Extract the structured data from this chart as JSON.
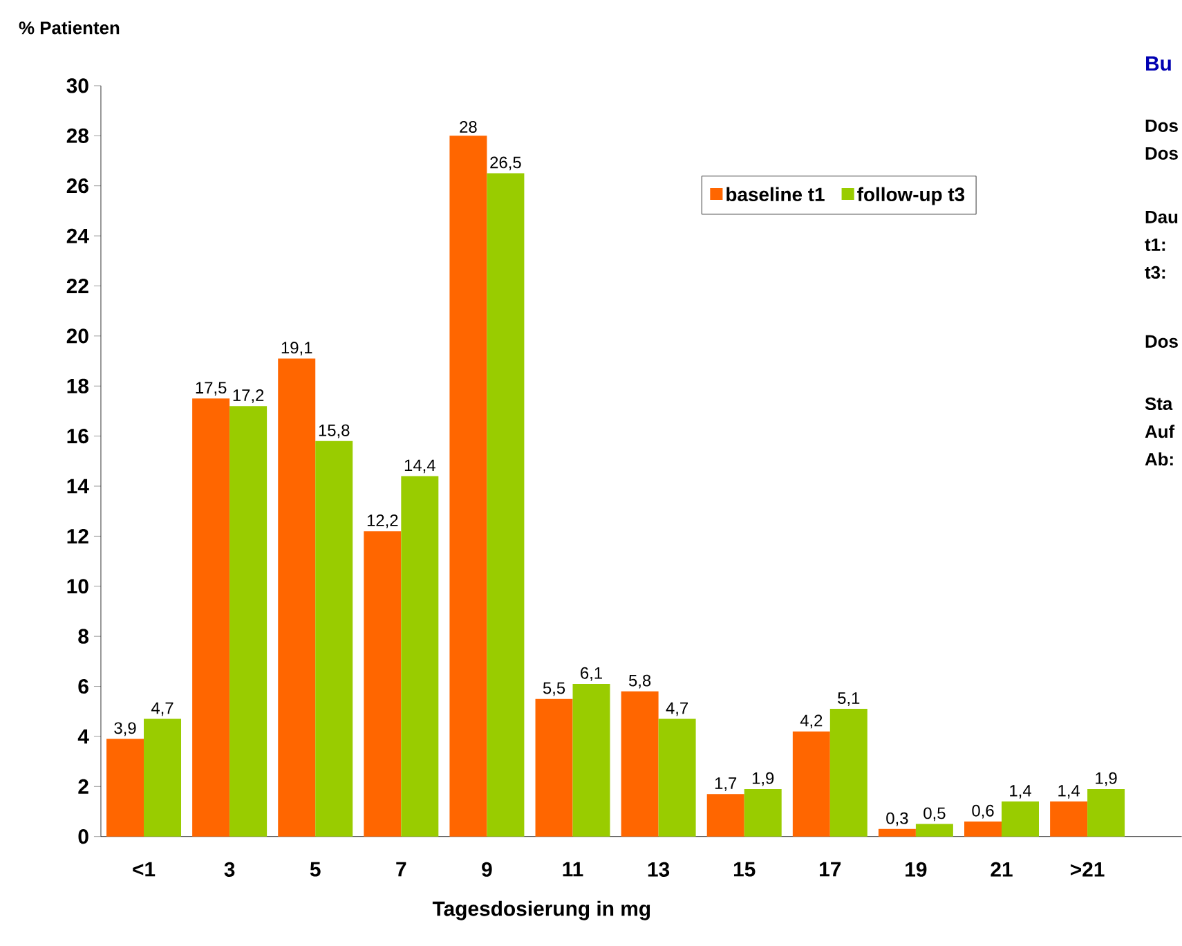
{
  "chart_data": {
    "type": "bar",
    "ylabel": "% Patienten",
    "xlabel": "Tagesdosierung in mg",
    "categories": [
      "<1",
      "3",
      "5",
      "7",
      "9",
      "11",
      "13",
      "15",
      "17",
      "19",
      "21",
      ">21"
    ],
    "series": [
      {
        "name": "baseline t1",
        "color": "#ff6600",
        "values": [
          3.9,
          17.5,
          19.1,
          12.2,
          28,
          5.5,
          5.8,
          1.7,
          4.2,
          0.3,
          0.6,
          1.4
        ],
        "value_labels": [
          "3,9",
          "17,5",
          "19,1",
          "12,2",
          "28",
          "5,5",
          "5,8",
          "1,7",
          "4,2",
          "0,3",
          "0,6",
          "1,4"
        ]
      },
      {
        "name": "follow-up t3",
        "color": "#99cc00",
        "values": [
          4.7,
          17.2,
          15.8,
          14.4,
          26.5,
          6.1,
          4.7,
          1.9,
          5.1,
          0.5,
          1.4,
          1.9
        ],
        "value_labels": [
          "4,7",
          "17,2",
          "15,8",
          "14,4",
          "26,5",
          "6,1",
          "4,7",
          "1,9",
          "5,1",
          "0,5",
          "1,4",
          "1,9"
        ]
      }
    ],
    "ylim": [
      0,
      30
    ],
    "yticks": [
      0,
      2,
      4,
      6,
      8,
      10,
      12,
      14,
      16,
      18,
      20,
      22,
      24,
      26,
      28,
      30
    ],
    "legend": "top right",
    "grid": false,
    "annotations": [
      "Bu",
      "Dos",
      "Dos",
      "Dau",
      "t1:",
      "t3:",
      "Dos",
      "Sta",
      "Auf",
      "Ab:"
    ]
  }
}
